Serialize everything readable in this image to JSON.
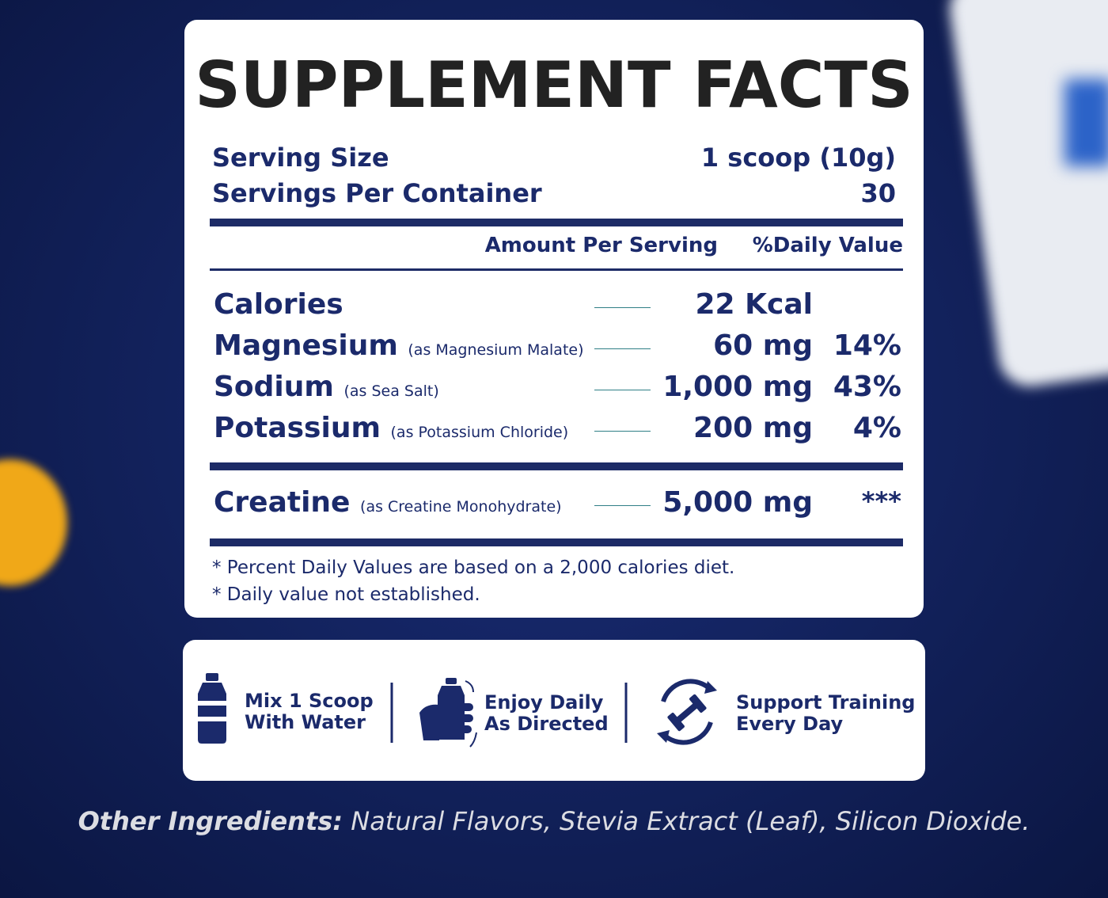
{
  "title": "SUPPLEMENT FACTS",
  "serving": [
    {
      "label": "Serving Size",
      "value": "1 scoop (10g)"
    },
    {
      "label": "Servings Per Container",
      "value": "30"
    }
  ],
  "columns": {
    "amount": "Amount Per Serving",
    "daily": "%Daily Value"
  },
  "nutrients": [
    {
      "name": "Calories",
      "amount": "22 Kcal"
    },
    {
      "name": "Magnesium",
      "source": "(as Magnesium Malate)",
      "amount": "60 mg",
      "daily_value": "14%"
    },
    {
      "name": "Sodium",
      "source": "(as Sea Salt)",
      "amount": "1,000 mg",
      "daily_value": "43%"
    },
    {
      "name": "Potassium",
      "source": "(as Potassium Chloride)",
      "amount": "200 mg",
      "daily_value": "4%"
    }
  ],
  "creatine": {
    "name": "Creatine",
    "source": "(as Creatine Monohydrate)",
    "amount": "5,000 mg",
    "daily_value": "***"
  },
  "footnotes": [
    "* Percent Daily Values are based on a 2,000 calories diet.",
    "* Daily value not established."
  ],
  "features": [
    {
      "line1": "Mix 1 Scoop",
      "line2": "With Water"
    },
    {
      "line1": "Enjoy Daily",
      "line2": "As Directed"
    },
    {
      "line1": "Support Training",
      "line2": "Every Day"
    }
  ],
  "other_ingredients": {
    "label": "Other Ingredients:",
    "text": "Natural Flavors, Stevia Extract (Leaf), Silicon Dioxide."
  }
}
